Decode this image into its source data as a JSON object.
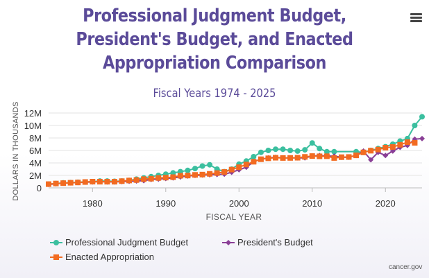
{
  "header": {
    "title_lines": [
      "Professional Judgment Budget,",
      "President's Budget, and Enacted",
      "Appropriation Comparison"
    ],
    "subtitle": "Fiscal Years 1974 - 2025",
    "menu_icon": "hamburger-menu-icon"
  },
  "legend": {
    "items": [
      {
        "label": "Professional Judgment Budget",
        "color": "#3bbf9f",
        "marker": "circle"
      },
      {
        "label": "President's Budget",
        "color": "#8a3f96",
        "marker": "diamond"
      },
      {
        "label": "Enacted Appropriation",
        "color": "#f26b21",
        "marker": "square"
      }
    ]
  },
  "credit": "cancer.gov",
  "chart_data": {
    "type": "line",
    "title": "Professional Judgment Budget, President's Budget, and Enacted Appropriation Comparison",
    "subtitle": "Fiscal Years 1974 - 2025",
    "xlabel": "FISCAL YEAR",
    "ylabel": "DOLLARS IN THOUSANDS",
    "xlim": [
      1974,
      2025
    ],
    "ylim": [
      0,
      12000000
    ],
    "x_ticks": [
      1980,
      1990,
      2000,
      2010,
      2020
    ],
    "y_ticks": [
      0,
      2000000,
      4000000,
      6000000,
      8000000,
      10000000,
      12000000
    ],
    "y_tick_labels": [
      "0",
      "2M",
      "4M",
      "6M",
      "8M",
      "10M",
      "12M"
    ],
    "grid": true,
    "legend_position": "bottom-left",
    "series": [
      {
        "name": "Professional Judgment Budget",
        "color": "#3bbf9f",
        "marker": "circle",
        "points": [
          [
            1974,
            600000
          ],
          [
            1975,
            700000
          ],
          [
            1976,
            800000
          ],
          [
            1977,
            850000
          ],
          [
            1978,
            900000
          ],
          [
            1979,
            950000
          ],
          [
            1980,
            1000000
          ],
          [
            1981,
            1100000
          ],
          [
            1982,
            1100000
          ],
          [
            1983,
            1050000
          ],
          [
            1984,
            1100000
          ],
          [
            1985,
            1200000
          ],
          [
            1986,
            1400000
          ],
          [
            1987,
            1600000
          ],
          [
            1988,
            1800000
          ],
          [
            1989,
            2000000
          ],
          [
            1990,
            2200000
          ],
          [
            1991,
            2400000
          ],
          [
            1992,
            2600000
          ],
          [
            1993,
            2800000
          ],
          [
            1994,
            3100000
          ],
          [
            1995,
            3500000
          ],
          [
            1996,
            3700000
          ],
          [
            1997,
            3000000
          ],
          [
            1998,
            2600000
          ],
          [
            1999,
            3000000
          ],
          [
            2000,
            3800000
          ],
          [
            2001,
            4300000
          ],
          [
            2002,
            5000000
          ],
          [
            2003,
            5700000
          ],
          [
            2004,
            6000000
          ],
          [
            2005,
            6200000
          ],
          [
            2006,
            6200000
          ],
          [
            2007,
            6000000
          ],
          [
            2008,
            5900000
          ],
          [
            2009,
            6100000
          ],
          [
            2010,
            7200000
          ],
          [
            2011,
            6300000
          ],
          [
            2012,
            5800000
          ],
          [
            2013,
            5800000
          ],
          [
            2016,
            5800000
          ],
          [
            2017,
            5700000
          ],
          [
            2018,
            6000000
          ],
          [
            2019,
            6300000
          ],
          [
            2020,
            6600000
          ],
          [
            2021,
            7000000
          ],
          [
            2022,
            7500000
          ],
          [
            2023,
            7900000
          ],
          [
            2024,
            10000000
          ],
          [
            2025,
            11400000
          ]
        ]
      },
      {
        "name": "President's Budget",
        "color": "#8a3f96",
        "marker": "diamond",
        "points": [
          [
            1974,
            550000
          ],
          [
            1975,
            650000
          ],
          [
            1976,
            750000
          ],
          [
            1977,
            800000
          ],
          [
            1978,
            850000
          ],
          [
            1979,
            900000
          ],
          [
            1980,
            950000
          ],
          [
            1981,
            1000000
          ],
          [
            1982,
            950000
          ],
          [
            1983,
            950000
          ],
          [
            1984,
            1000000
          ],
          [
            1985,
            1050000
          ],
          [
            1986,
            1100000
          ],
          [
            1987,
            1150000
          ],
          [
            1988,
            1350000
          ],
          [
            1989,
            1400000
          ],
          [
            1990,
            1500000
          ],
          [
            1991,
            1600000
          ],
          [
            1992,
            1750000
          ],
          [
            1993,
            1900000
          ],
          [
            1994,
            2000000
          ],
          [
            1995,
            2050000
          ],
          [
            1996,
            2100000
          ],
          [
            1997,
            2150000
          ],
          [
            1998,
            2200000
          ],
          [
            1999,
            2500000
          ],
          [
            2000,
            2900000
          ],
          [
            2001,
            3300000
          ],
          [
            2002,
            4200000
          ],
          [
            2003,
            4600000
          ],
          [
            2004,
            4800000
          ],
          [
            2005,
            4900000
          ],
          [
            2006,
            4800000
          ],
          [
            2007,
            4800000
          ],
          [
            2008,
            4800000
          ],
          [
            2009,
            4800000
          ],
          [
            2010,
            5100000
          ],
          [
            2011,
            5200000
          ],
          [
            2012,
            5100000
          ],
          [
            2013,
            5100000
          ],
          [
            2014,
            4900000
          ],
          [
            2015,
            4900000
          ],
          [
            2016,
            5200000
          ],
          [
            2017,
            5900000
          ],
          [
            2018,
            4500000
          ],
          [
            2019,
            5700000
          ],
          [
            2020,
            5200000
          ],
          [
            2021,
            5900000
          ],
          [
            2022,
            6500000
          ],
          [
            2023,
            6800000
          ],
          [
            2024,
            7800000
          ],
          [
            2025,
            7900000
          ]
        ]
      },
      {
        "name": "Enacted Appropriation",
        "color": "#f26b21",
        "marker": "square",
        "points": [
          [
            1974,
            600000
          ],
          [
            1975,
            700000
          ],
          [
            1976,
            760000
          ],
          [
            1977,
            820000
          ],
          [
            1978,
            870000
          ],
          [
            1979,
            940000
          ],
          [
            1980,
            1000000
          ],
          [
            1981,
            990000
          ],
          [
            1982,
            990000
          ],
          [
            1983,
            990000
          ],
          [
            1984,
            1080000
          ],
          [
            1985,
            1180000
          ],
          [
            1986,
            1260000
          ],
          [
            1987,
            1400000
          ],
          [
            1988,
            1470000
          ],
          [
            1989,
            1590000
          ],
          [
            1990,
            1650000
          ],
          [
            1991,
            1720000
          ],
          [
            1992,
            1950000
          ],
          [
            1993,
            1980000
          ],
          [
            1994,
            2080000
          ],
          [
            1995,
            2130000
          ],
          [
            1996,
            2250000
          ],
          [
            1997,
            2380000
          ],
          [
            1998,
            2550000
          ],
          [
            1999,
            2930000
          ],
          [
            2000,
            3310000
          ],
          [
            2001,
            3750000
          ],
          [
            2002,
            4190000
          ],
          [
            2003,
            4590000
          ],
          [
            2004,
            4740000
          ],
          [
            2005,
            4830000
          ],
          [
            2006,
            4790000
          ],
          [
            2007,
            4800000
          ],
          [
            2008,
            4830000
          ],
          [
            2009,
            4970000
          ],
          [
            2010,
            5100000
          ],
          [
            2011,
            5060000
          ],
          [
            2012,
            5070000
          ],
          [
            2013,
            4790000
          ],
          [
            2014,
            4920000
          ],
          [
            2015,
            4950000
          ],
          [
            2016,
            5210000
          ],
          [
            2017,
            5690000
          ],
          [
            2018,
            5960000
          ],
          [
            2019,
            6140000
          ],
          [
            2020,
            6440000
          ],
          [
            2021,
            6560000
          ],
          [
            2022,
            6910000
          ],
          [
            2023,
            7320000
          ],
          [
            2024,
            7220000
          ]
        ]
      }
    ]
  }
}
